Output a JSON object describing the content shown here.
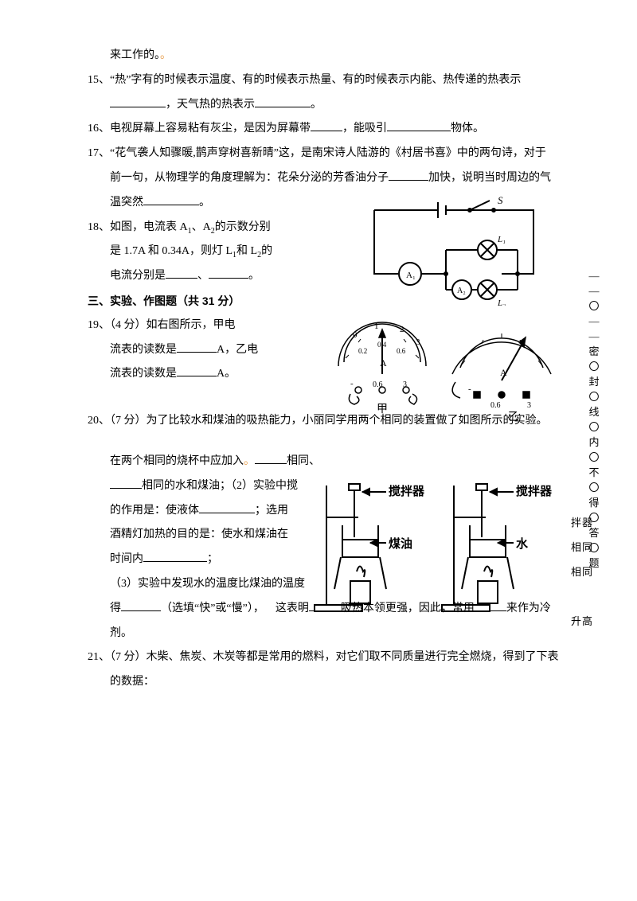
{
  "q14_tail": "来工作的。",
  "q15": {
    "num": "15、",
    "t1": "“热”字有的时候表示温度、有的时候表示热量、有的时候表示内能、热传递的热表示",
    "t2": "，天气热的热表示",
    "t3": "。"
  },
  "q16": {
    "num": "16、",
    "t1": "电视屏幕上容易粘有灰尘，是因为屏幕带",
    "t2": "，能吸引",
    "t3": "物体。"
  },
  "q17": {
    "num": "17、",
    "t1": "“花气袭人知骤暖,鹊声穿树喜新晴”这，是南宋诗人陆游的《村居书喜》中的两句诗，对于",
    "t2": "前一句，从物理学的角度理解为：花朵分泌的芳香油分子",
    "t3": "加快，说明当时周边的气",
    "t4": "温突然",
    "t5": "。"
  },
  "q18": {
    "num": "18、",
    "t1": "如图，电流表 A",
    "t2": "、A",
    "t3": "的示数分别",
    "t4": "是 1.7A 和 0.34A，则灯 L",
    "t5": "和 L",
    "t6": "的",
    "t7": "电流分别是",
    "t8": "、",
    "t9": "。"
  },
  "section3": "三、实验、作图题（共 31 分）",
  "q19": {
    "num": "19、",
    "t1": "（4 分）如右图所示，甲电",
    "t2": "流表的读数是",
    "t3": "A，乙电",
    "t4": "流表的读数是",
    "t5": "A。"
  },
  "q20": {
    "num": "20、",
    "t1": "（7 分）为了比较水和煤油的吸热能力，小丽同学用两个相同的装置做了如图所示的实验。",
    "p1a": "在两个相同的烧杯中应加入",
    "p1b": "相同、",
    "p1c": "相同的水和煤油；（2）实验中搅",
    "p1d": "的作用是：使液体",
    "p1e": "；选用",
    "p1f": "酒精灯加热的目的是：使水和煤油在",
    "p1g": "时间内",
    "p1h": "；",
    "rfrag_ban": "拌",
    "rfrag_qi": "器",
    "rfrag_xiang1": "相",
    "rfrag_tong1": "同",
    "rfrag_xiang2": "相",
    "rfrag_tong2": "同",
    "p3a": "（3）实验中发现水的温度比煤油的温度",
    "rfrag_sheng": "升",
    "rfrag_gao": "高",
    "p3b": "得",
    "p3c": "（选填“快”或“慢”），",
    "p3d": "这表明",
    "p3e": "吸热本领更强，因此，常用",
    "p3f": "来作为冷",
    "p3g": "剂。"
  },
  "q21": {
    "num": "21、",
    "t1": "（7 分）木柴、焦炭、木炭等都是常用的燃料，对它们取不同质量进行完全燃烧，得到了下表",
    "t2": "的数据："
  },
  "fig_circuit": {
    "labels": {
      "S": "S",
      "A1": "A₁",
      "A2": "A₂",
      "L1": "L₁",
      "L2": "L₂"
    }
  },
  "fig_meters": {
    "label_jia": "甲",
    "label_yi": "乙",
    "unit": "A",
    "scale_small": "0.6",
    "scale_large": "3",
    "tick0": "0",
    "tick1": "1",
    "tick2": "2",
    "tick3": "3",
    "tick02": "0.2",
    "tick04": "0.4",
    "tick06": "0.6"
  },
  "fig_beakers": {
    "stirrer": "搅拌器",
    "oil": "煤油",
    "water": "水"
  },
  "margin": [
    "—",
    "—",
    "〇",
    "—",
    "—",
    "密",
    "〇",
    "封",
    "〇",
    "线",
    "〇",
    "内",
    "〇",
    "不",
    "〇",
    "得",
    "〇",
    "答",
    "〇",
    "题"
  ]
}
